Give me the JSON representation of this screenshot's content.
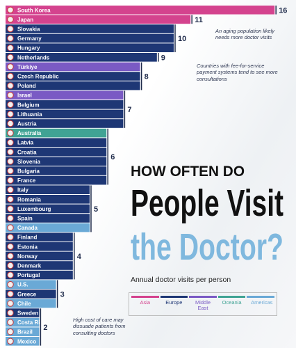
{
  "chart_data": {
    "type": "bar",
    "title": [
      "HOW OFTEN DO",
      "People Visit",
      "the Doctor?"
    ],
    "subtitle": "Annual doctor visits per person",
    "annotations": [
      "An aging population likely needs more doctor visits",
      "Countries with fee-for-service payment systems tend to see more consultations",
      "High cost of care may dissuade patients from consulting doctors"
    ],
    "legend": [
      {
        "name": "Asia",
        "color": "#d4438e"
      },
      {
        "name": "Europe",
        "color": "#1e3775"
      },
      {
        "name": "Middle East",
        "color": "#7a5ac4"
      },
      {
        "name": "Oceania",
        "color": "#40a394"
      },
      {
        "name": "Americas",
        "color": "#6aa9d6"
      }
    ],
    "groups": [
      {
        "value": 16,
        "rows": [
          {
            "name": "South Korea",
            "region": "Asia"
          }
        ]
      },
      {
        "value": 11,
        "rows": [
          {
            "name": "Japan",
            "region": "Asia"
          }
        ]
      },
      {
        "value": 10,
        "rows": [
          {
            "name": "Slovakia",
            "region": "Europe"
          },
          {
            "name": "Germany",
            "region": "Europe"
          },
          {
            "name": "Hungary",
            "region": "Europe"
          }
        ]
      },
      {
        "value": 9,
        "rows": [
          {
            "name": "Netherlands",
            "region": "Europe"
          }
        ]
      },
      {
        "value": 8,
        "rows": [
          {
            "name": "Türkiye",
            "region": "Middle East"
          },
          {
            "name": "Czech Republic",
            "region": "Europe"
          },
          {
            "name": "Poland",
            "region": "Europe"
          }
        ]
      },
      {
        "value": 7,
        "rows": [
          {
            "name": "Israel",
            "region": "Middle East"
          },
          {
            "name": "Belgium",
            "region": "Europe"
          },
          {
            "name": "Lithuania",
            "region": "Europe"
          },
          {
            "name": "Austria",
            "region": "Europe"
          }
        ]
      },
      {
        "value": 6,
        "rows": [
          {
            "name": "Australia",
            "region": "Oceania"
          },
          {
            "name": "Latvia",
            "region": "Europe"
          },
          {
            "name": "Croatia",
            "region": "Europe"
          },
          {
            "name": "Slovenia",
            "region": "Europe"
          },
          {
            "name": "Bulgaria",
            "region": "Europe"
          },
          {
            "name": "France",
            "region": "Europe"
          }
        ]
      },
      {
        "value": 5,
        "rows": [
          {
            "name": "Italy",
            "region": "Europe"
          },
          {
            "name": "Romania",
            "region": "Europe"
          },
          {
            "name": "Luxembourg",
            "region": "Europe"
          },
          {
            "name": "Spain",
            "region": "Europe"
          },
          {
            "name": "Canada",
            "region": "Americas"
          }
        ]
      },
      {
        "value": 4,
        "rows": [
          {
            "name": "Finland",
            "region": "Europe"
          },
          {
            "name": "Estonia",
            "region": "Europe"
          },
          {
            "name": "Norway",
            "region": "Europe"
          },
          {
            "name": "Denmark",
            "region": "Europe"
          },
          {
            "name": "Portugal",
            "region": "Europe"
          }
        ]
      },
      {
        "value": 3,
        "rows": [
          {
            "name": "U.S.",
            "region": "Americas"
          },
          {
            "name": "Greece",
            "region": "Europe"
          },
          {
            "name": "Chile",
            "region": "Americas"
          }
        ]
      },
      {
        "value": 2,
        "rows": [
          {
            "name": "Sweden",
            "region": "Europe"
          },
          {
            "name": "Costa Rica",
            "region": "Americas"
          },
          {
            "name": "Brazil",
            "region": "Americas"
          },
          {
            "name": "Mexico",
            "region": "Americas"
          }
        ]
      }
    ]
  }
}
